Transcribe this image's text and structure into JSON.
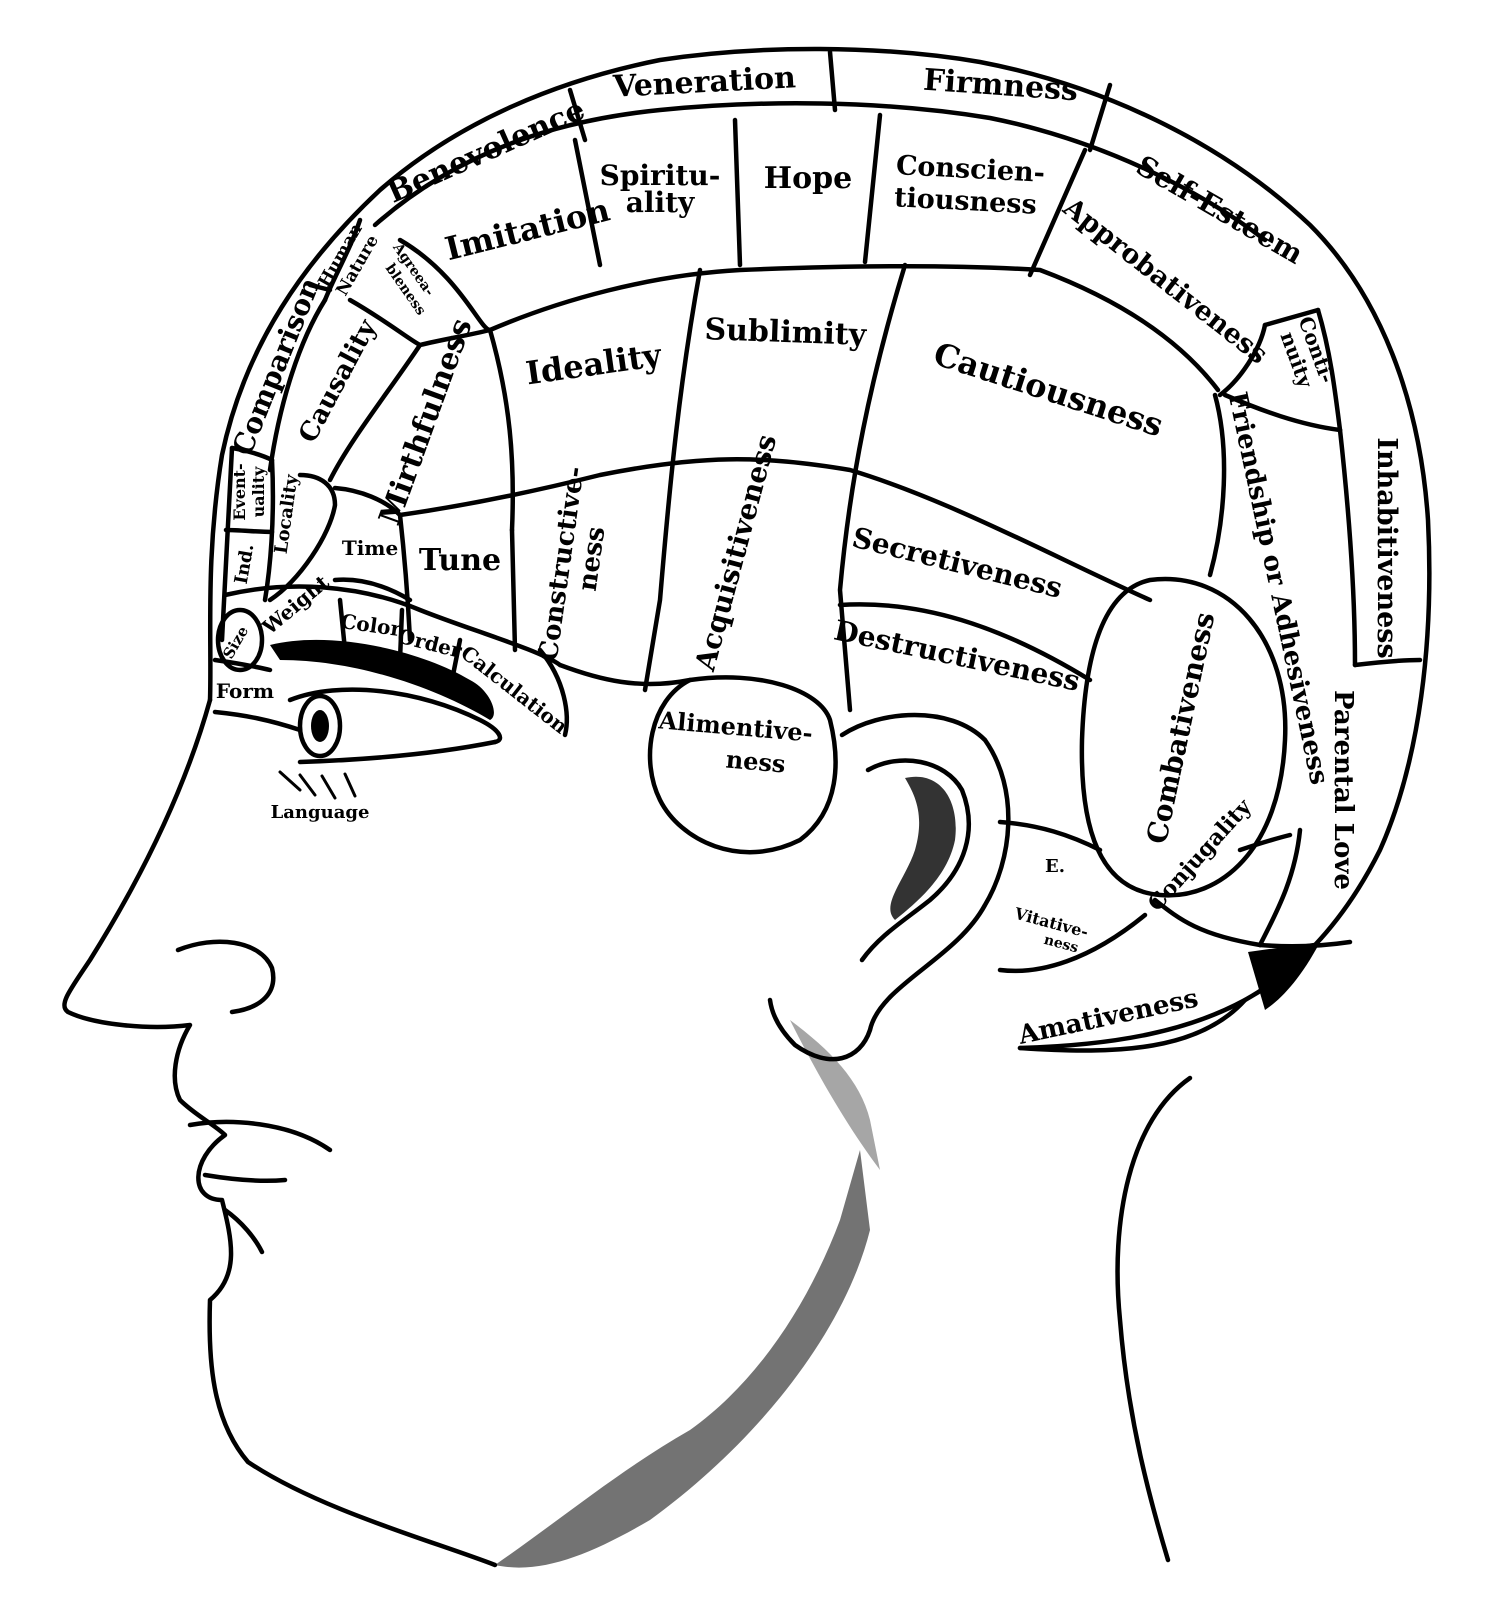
{
  "diagram": {
    "regions": {
      "veneration": "Veneration",
      "firmness": "Firmness",
      "benevolence": "Benevolence",
      "self_esteem": "Self-Esteem",
      "human_nature": [
        "Human",
        "Nature"
      ],
      "imitation": "Imitation",
      "spirituality": [
        "Spiritu-",
        "ality"
      ],
      "hope": "Hope",
      "conscientiousness": [
        "Conscien-",
        "tiousness"
      ],
      "approbativeness": "Approbativeness",
      "agreeableness": [
        "Agreea-",
        "bleness"
      ],
      "continuity": [
        "Conti-",
        "nuity"
      ],
      "comparison": "Comparison",
      "causality": "Causality",
      "mirthfulness": "Mirthfulness",
      "ideality": "Ideality",
      "sublimity": "Sublimity",
      "cautiousness": "Cautiousness",
      "friendship": "Friendship or Adhesiveness",
      "inhabitiveness": "Inhabitiveness",
      "eventuality": [
        "Event-",
        "uality"
      ],
      "locality": "Locality",
      "individuality": "Ind.",
      "time": "Time",
      "tune": "Tune",
      "constructiveness": [
        "Constructive-",
        "ness"
      ],
      "acquisitiveness": "Acquisitiveness",
      "secretiveness": "Secretiveness",
      "destructiveness": "Destructiveness",
      "combativeness": "Combativeness",
      "size": "Size",
      "weight": "Weight",
      "color": "Color",
      "order": "Order",
      "calculation": "Calculation",
      "form": "Form",
      "language": "Language",
      "alimentiveness": [
        "Alimentive-",
        "ness"
      ],
      "parental_love": "Parental Love",
      "conjugality": "Conjugality",
      "e": "E.",
      "vitativeness": [
        "Vitative-",
        "ness"
      ],
      "amativeness": "Amativeness"
    }
  }
}
